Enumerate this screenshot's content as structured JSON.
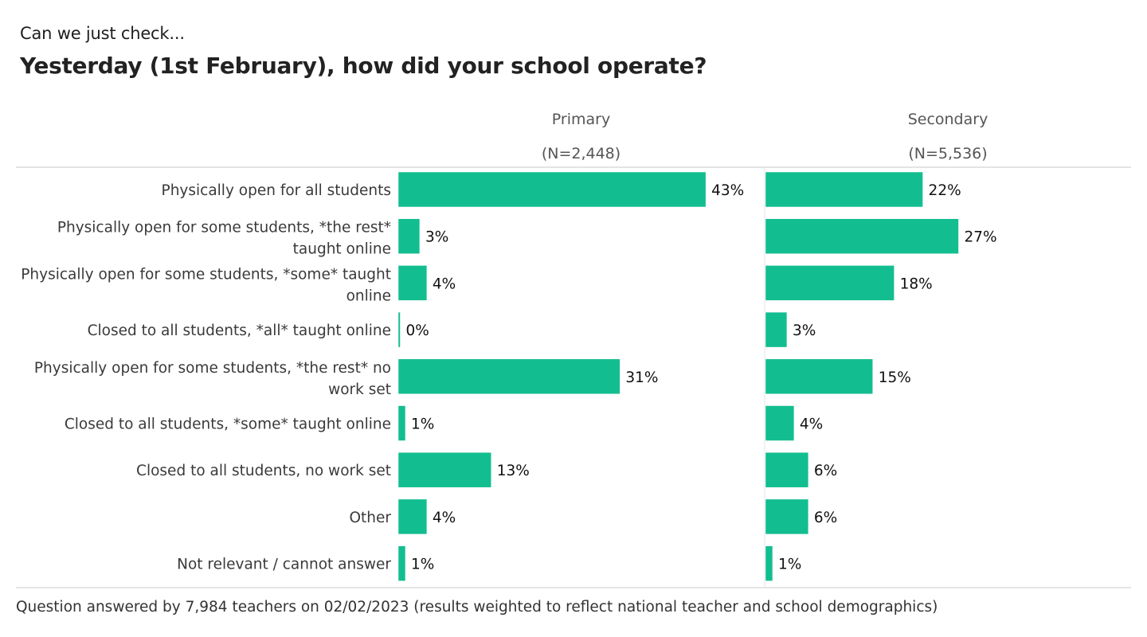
{
  "header": {
    "subtitle": "Can we just check...",
    "title": "Yesterday (1st February), how did your school operate?"
  },
  "footer": {
    "note": "Question answered by 7,984 teachers on 02/02/2023 (results weighted to reflect national teacher and school demographics)"
  },
  "colors": {
    "bar": "#12be8f",
    "rule": "#c8c8c8",
    "header_text": "#555555"
  },
  "chart_data": {
    "type": "bar",
    "orientation": "horizontal",
    "unit": "%",
    "categories": [
      [
        "Physically open for all students"
      ],
      [
        "Physically open for some students, *the rest*",
        "taught online"
      ],
      [
        "Physically open for some students, *some* taught",
        "online"
      ],
      [
        "Closed to all students, *all* taught online"
      ],
      [
        "Physically open for some students, *the rest* no",
        "work set"
      ],
      [
        "Closed to all students, *some* taught online"
      ],
      [
        "Closed to all students, no work set"
      ],
      [
        "Other"
      ],
      [
        "Not relevant / cannot answer"
      ]
    ],
    "series": [
      {
        "name": "Primary",
        "n_label": "(N=2,448)",
        "values": [
          43,
          3,
          4,
          0,
          31,
          1,
          13,
          4,
          1
        ]
      },
      {
        "name": "Secondary",
        "n_label": "(N=5,536)",
        "values": [
          22,
          27,
          18,
          3,
          15,
          4,
          6,
          6,
          1
        ]
      }
    ],
    "xlim": [
      0,
      60
    ],
    "grid": false,
    "legend": "none"
  }
}
